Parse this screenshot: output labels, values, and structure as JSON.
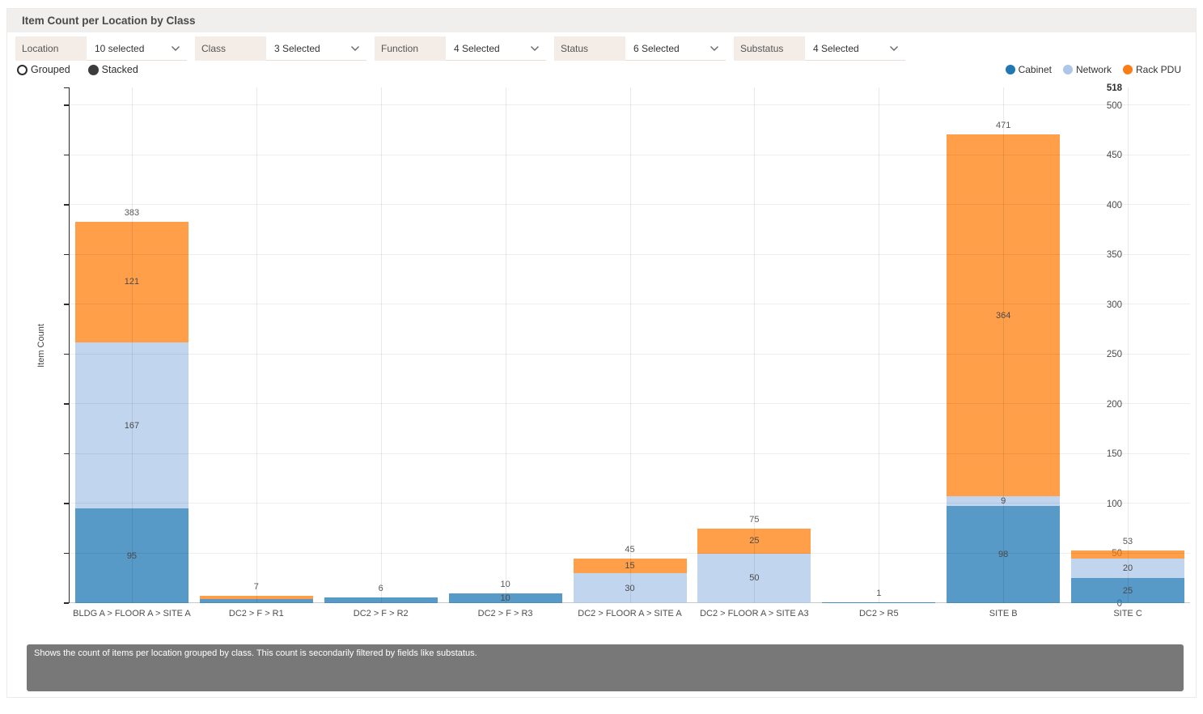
{
  "header": {
    "title": "Item Count per Location by Class"
  },
  "filters": [
    {
      "label": "Location",
      "value": "10 selected"
    },
    {
      "label": "Class",
      "value": "3 Selected"
    },
    {
      "label": "Function",
      "value": "4 Selected"
    },
    {
      "label": "Status",
      "value": "6 Selected"
    },
    {
      "label": "Substatus",
      "value": "4 Selected"
    }
  ],
  "mode_toggle": [
    {
      "label": "Grouped",
      "selected": false
    },
    {
      "label": "Stacked",
      "selected": true
    }
  ],
  "legend": [
    {
      "label": "Cabinet",
      "color": "#1f77b4"
    },
    {
      "label": "Network",
      "color": "#aec7e8"
    },
    {
      "label": "Rack PDU",
      "color": "#f87e17"
    }
  ],
  "chart_data": {
    "type": "bar",
    "stacked": true,
    "title": "Item Count per Location by Class",
    "xlabel": "",
    "ylabel": "Item Count",
    "ylim": [
      0,
      518
    ],
    "yticks": [
      0,
      50,
      100,
      150,
      200,
      250,
      300,
      350,
      400,
      450,
      500
    ],
    "ymax_label": "518",
    "grid": true,
    "legend_position": "top-right",
    "categories": [
      "BLDG A > FLOOR A > SITE A",
      "DC2 > F > R1",
      "DC2 > F > R2",
      "DC2 > F > R3",
      "DC2 > FLOOR A > SITE A",
      "DC2 > FLOOR A > SITE A3",
      "DC2 > R5",
      "SITE B",
      "SITE C"
    ],
    "series": [
      {
        "name": "Cabinet",
        "color": "#1f77b4",
        "values": [
          95,
          4,
          6,
          10,
          0,
          0,
          1,
          98,
          25
        ]
      },
      {
        "name": "Network",
        "color": "#aec7e8",
        "values": [
          167,
          0,
          0,
          0,
          30,
          50,
          0,
          9,
          20
        ]
      },
      {
        "name": "Rack PDU",
        "color": "#ff7f0e",
        "values": [
          121,
          3,
          0,
          0,
          15,
          25,
          0,
          364,
          8
        ]
      }
    ],
    "totals": [
      383,
      7,
      6,
      10,
      45,
      75,
      1,
      471,
      53
    ],
    "fill_opacity": 0.75
  },
  "footer": {
    "description": "Shows the count of items per location grouped by class. This count is secondarily filtered by fields like substatus."
  }
}
